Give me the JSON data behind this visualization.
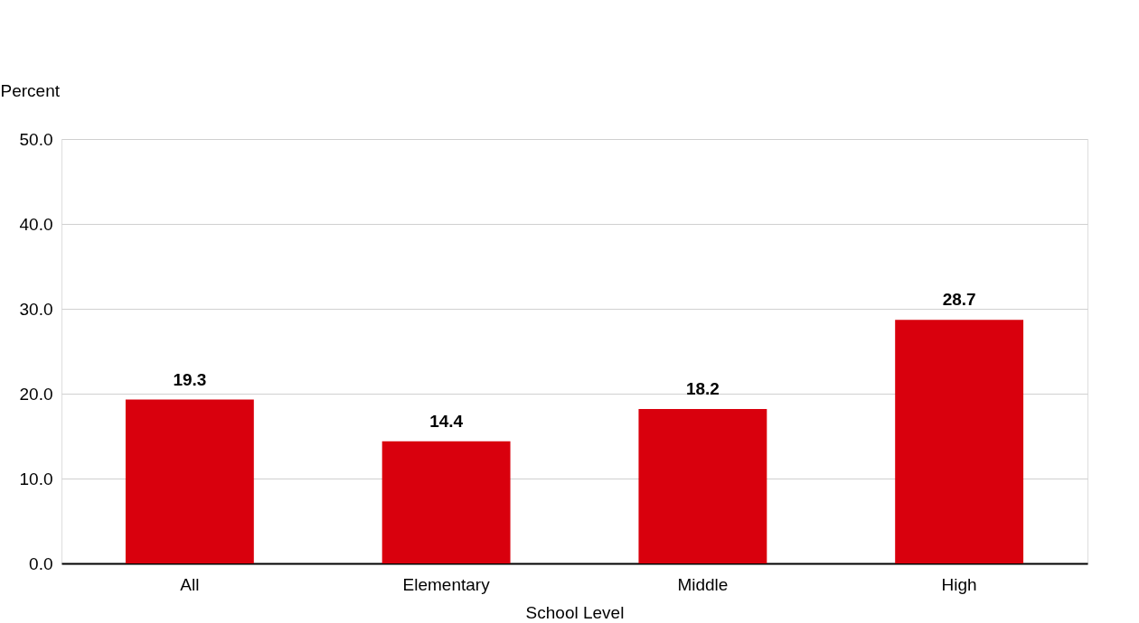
{
  "chart_data": {
    "type": "bar",
    "xlabel": "School Level",
    "ylabel": "Percent",
    "categories": [
      "All",
      "Elementary",
      "Middle",
      "High"
    ],
    "values": [
      19.3,
      14.4,
      18.2,
      28.7
    ],
    "color": "#d9000d",
    "ylim": [
      0,
      50
    ],
    "yticks": [
      {
        "value": 0,
        "label": "0.0"
      },
      {
        "value": 10,
        "label": "10.0"
      },
      {
        "value": 20,
        "label": "20.0"
      },
      {
        "value": 30,
        "label": "30.0"
      },
      {
        "value": 40,
        "label": "40.0"
      },
      {
        "value": 50,
        "label": "50.0"
      }
    ],
    "grid": "y",
    "data_labels": true
  }
}
